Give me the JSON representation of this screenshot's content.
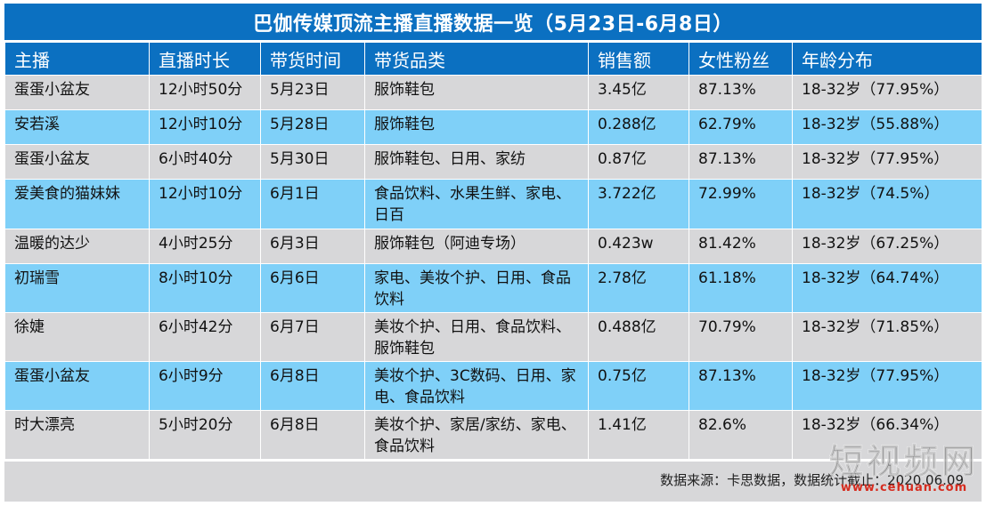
{
  "title": "巴伽传媒顶流主播直播数据一览（5月23日-6月8日）",
  "headers": [
    "主播",
    "直播时长",
    "带货时间",
    "带货品类",
    "销售额",
    "女性粉丝",
    "年龄分布"
  ],
  "rows": [
    [
      "蛋蛋小盆友",
      "12小时50分",
      "5月23日",
      "服饰鞋包",
      "3.45亿",
      "87.13%",
      "18-32岁（77.95%）"
    ],
    [
      "安若溪",
      "12小时10分",
      "5月28日",
      "服饰鞋包",
      "0.288亿",
      "62.79%",
      "18-32岁（55.88%）"
    ],
    [
      "蛋蛋小盆友",
      "6小时40分",
      "5月30日",
      "服饰鞋包、日用、家纺",
      "0.87亿",
      "87.13%",
      "18-32岁（77.95%）"
    ],
    [
      "爱美食的猫妹妹",
      "12小时10分",
      "6月1日",
      "食品饮料、水果生鲜、家电、日百",
      "3.722亿",
      "72.99%",
      "18-32岁（74.5%）"
    ],
    [
      "温暖的达少",
      "4小时25分",
      "6月3日",
      "服饰鞋包（阿迪专场）",
      "0.423w",
      "81.42%",
      "18-32岁（67.25%）"
    ],
    [
      "初瑞雪",
      "8小时10分",
      "6月6日",
      "家电、美妆个护、日用、食品饮料",
      "2.78亿",
      "61.18%",
      "18-32岁（64.74%）"
    ],
    [
      "徐婕",
      "6小时42分",
      "6月7日",
      "美妆个护、日用、食品饮料、服饰鞋包",
      "0.488亿",
      "70.79%",
      "18-32岁（71.85%）"
    ],
    [
      "蛋蛋小盆友",
      "6小时9分",
      "6月8日",
      "美妆个护、3C数码、日用、家电、食品饮料",
      "0.75亿",
      "87.13%",
      "18-32岁（77.95%）"
    ],
    [
      "时大漂亮",
      "5小时20分",
      "6月8日",
      "美妆个护、家居/家纺、家电、食品饮料",
      "1.41亿",
      "82.6%",
      "18-32岁（66.34%）"
    ]
  ],
  "footer": "数据来源：卡思数据，数据统计截止：2020.06.09",
  "watermark": {
    "main": "短视频网",
    "url": "www.cehuan.com"
  },
  "colors": {
    "header_blue": "#0b70c1",
    "row_grey": "#d7d7d9",
    "row_light_blue": "#7fd0f8"
  }
}
